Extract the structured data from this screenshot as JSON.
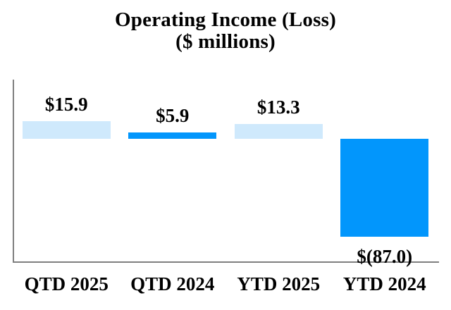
{
  "title": {
    "line1": "Operating Income (Loss)",
    "line2": "($ millions)"
  },
  "chart_data": {
    "type": "bar",
    "title": "Operating Income (Loss) ($ millions)",
    "categories": [
      "QTD 2025",
      "QTD 2024",
      "YTD 2025",
      "YTD 2024"
    ],
    "values": [
      15.9,
      5.9,
      13.3,
      -87.0
    ],
    "value_labels": [
      "$15.9",
      "$5.9",
      "$13.3",
      "$(87.0)"
    ],
    "bar_colors": [
      "#CFE9FC",
      "#0296FC",
      "#CFE9FC",
      "#0296FC"
    ],
    "xlabel": "",
    "ylabel": "",
    "ylim": [
      -87.0,
      15.9
    ],
    "grid": false,
    "legend": false,
    "axis_color": "#7F7F7F",
    "label_color": "#000000",
    "background_color": "#FFFFFF"
  }
}
